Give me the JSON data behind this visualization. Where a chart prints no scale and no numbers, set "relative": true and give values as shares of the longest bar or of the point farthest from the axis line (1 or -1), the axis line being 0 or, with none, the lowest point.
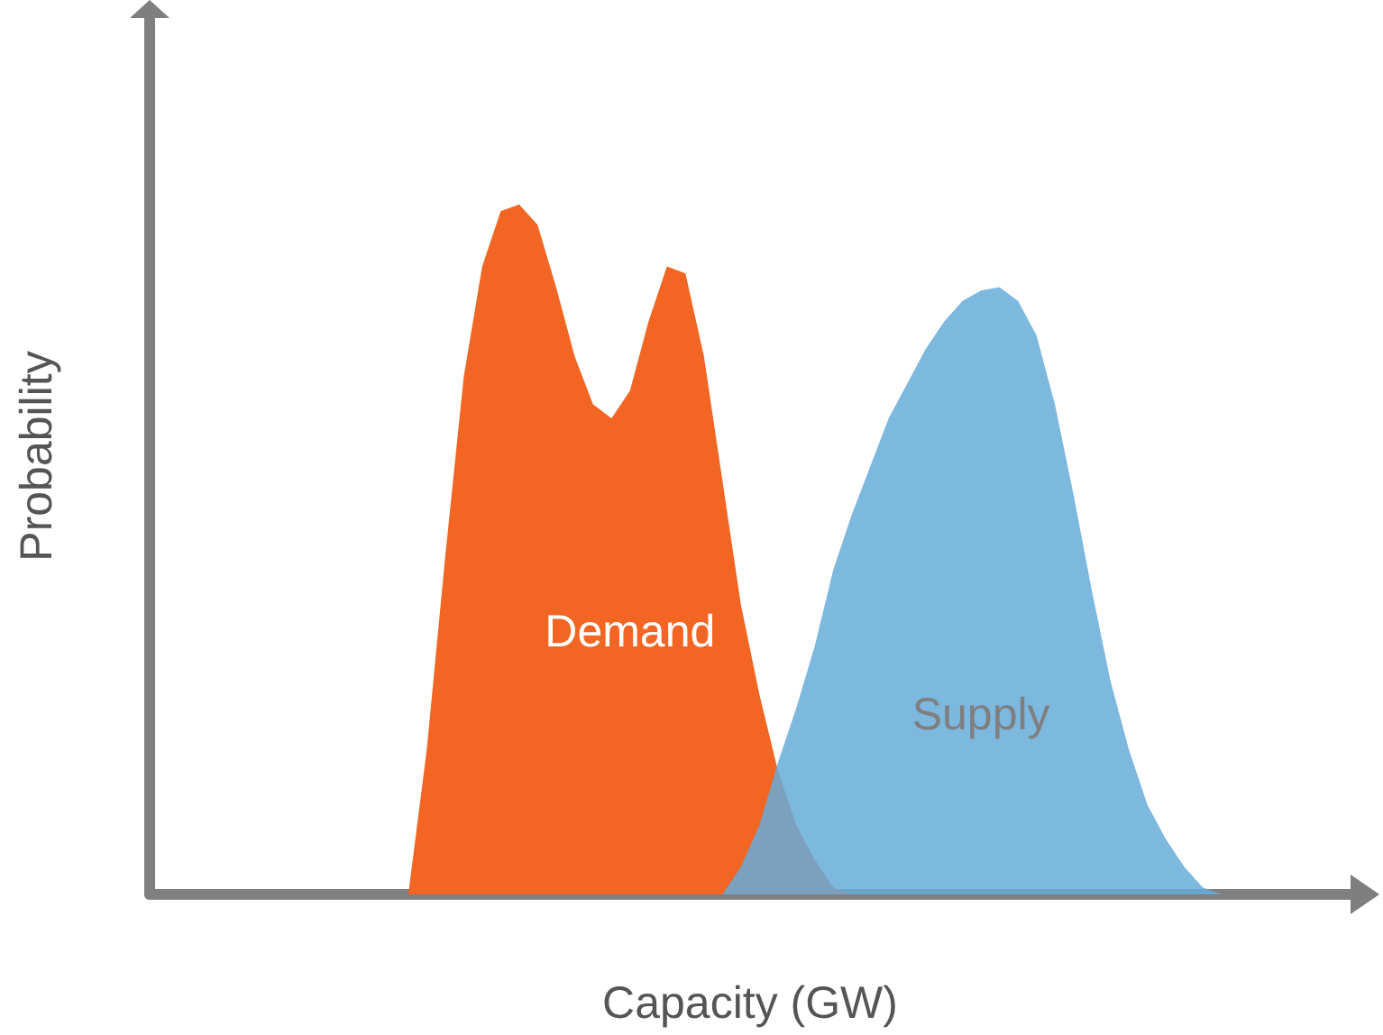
{
  "chart_data": {
    "type": "area",
    "relative": true,
    "xlabel": "Capacity (GW)",
    "ylabel": "Probability",
    "categories": [
      null,
      null,
      null,
      null,
      null,
      null,
      null,
      null,
      null,
      null,
      null,
      null,
      null,
      null,
      null,
      null,
      null,
      null,
      null,
      null,
      null,
      null,
      null,
      null,
      null,
      null,
      null,
      null,
      null,
      null,
      null,
      null,
      null,
      null,
      null,
      null,
      null,
      null,
      null,
      null,
      null,
      null,
      null,
      null,
      null,
      null,
      null,
      null,
      null,
      null,
      null,
      null,
      null,
      null,
      null,
      null,
      null,
      null,
      null,
      null,
      null,
      null,
      null,
      null,
      null,
      null
    ],
    "series": [
      {
        "name": "Demand",
        "color": "#f26522",
        "values": [
          null,
          null,
          null,
          null,
          null,
          null,
          null,
          null,
          null,
          null,
          null,
          null,
          null,
          null,
          0,
          0.21,
          0.49,
          0.75,
          0.91,
          0.99,
          1,
          0.97,
          0.88,
          0.78,
          0.71,
          0.69,
          0.73,
          0.83,
          0.91,
          0.9,
          0.78,
          0.6,
          0.42,
          0.29,
          0.18,
          0.1,
          0.05,
          0.01,
          0,
          null,
          null,
          null,
          null,
          null,
          null,
          null,
          null,
          null,
          null,
          null,
          null,
          null,
          null,
          null,
          null,
          null,
          null,
          null,
          null,
          null,
          null,
          null,
          null,
          null,
          null,
          null
        ]
      },
      {
        "name": "Supply",
        "color": "#66acd9",
        "values": [
          null,
          null,
          null,
          null,
          null,
          null,
          null,
          null,
          null,
          null,
          null,
          null,
          null,
          null,
          null,
          null,
          null,
          null,
          null,
          null,
          null,
          null,
          null,
          null,
          null,
          null,
          null,
          null,
          null,
          null,
          null,
          0,
          0.04,
          0.1,
          0.19,
          0.27,
          0.36,
          0.47,
          0.55,
          0.62,
          0.69,
          0.74,
          0.79,
          0.83,
          0.86,
          0.875,
          0.88,
          0.86,
          0.81,
          0.71,
          0.58,
          0.44,
          0.31,
          0.21,
          0.13,
          0.08,
          0.04,
          0.01,
          0,
          null,
          null,
          null,
          null,
          null,
          null,
          null
        ]
      }
    ],
    "grid": false,
    "legend": false
  }
}
